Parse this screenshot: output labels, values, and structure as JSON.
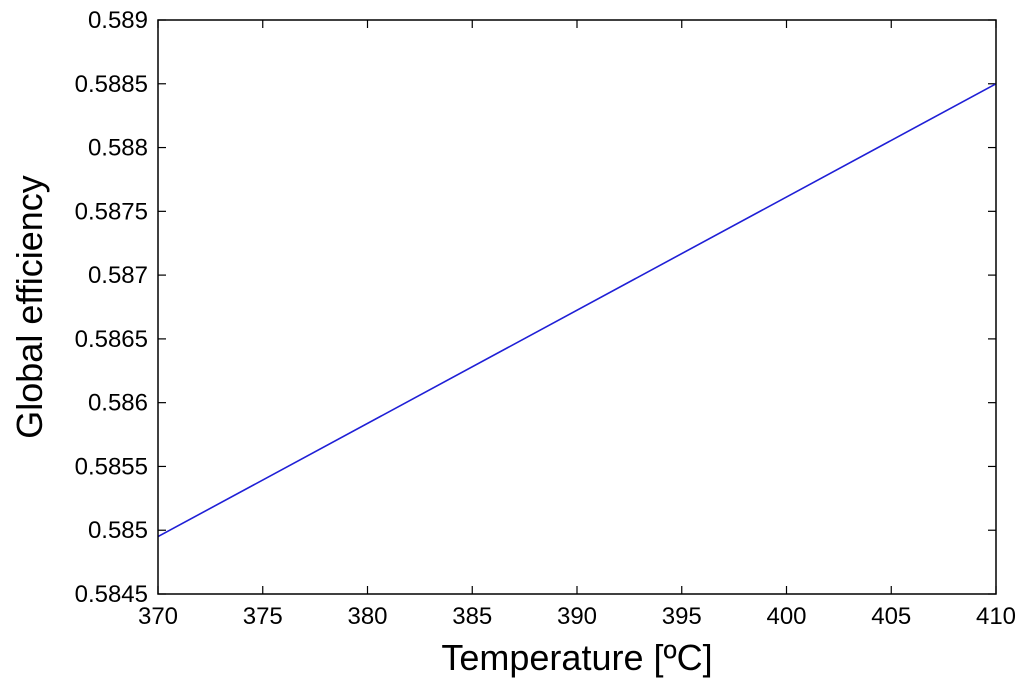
{
  "chart_data": {
    "type": "line",
    "title": "",
    "xlabel": "Temperature [ºC]",
    "ylabel": "Global efficiency",
    "xlim": [
      370,
      410
    ],
    "ylim": [
      0.5845,
      0.589
    ],
    "grid": false,
    "x_ticks": [
      "370",
      "375",
      "380",
      "385",
      "390",
      "395",
      "400",
      "405",
      "410"
    ],
    "y_ticks": [
      "0.5845",
      "0.585",
      "0.5855",
      "0.586",
      "0.5865",
      "0.587",
      "0.5875",
      "0.588",
      "0.5885",
      "0.589"
    ],
    "series": [
      {
        "color": "#1f1fd6",
        "x": [
          370,
          410
        ],
        "y": [
          0.58495,
          0.5885
        ]
      }
    ]
  }
}
